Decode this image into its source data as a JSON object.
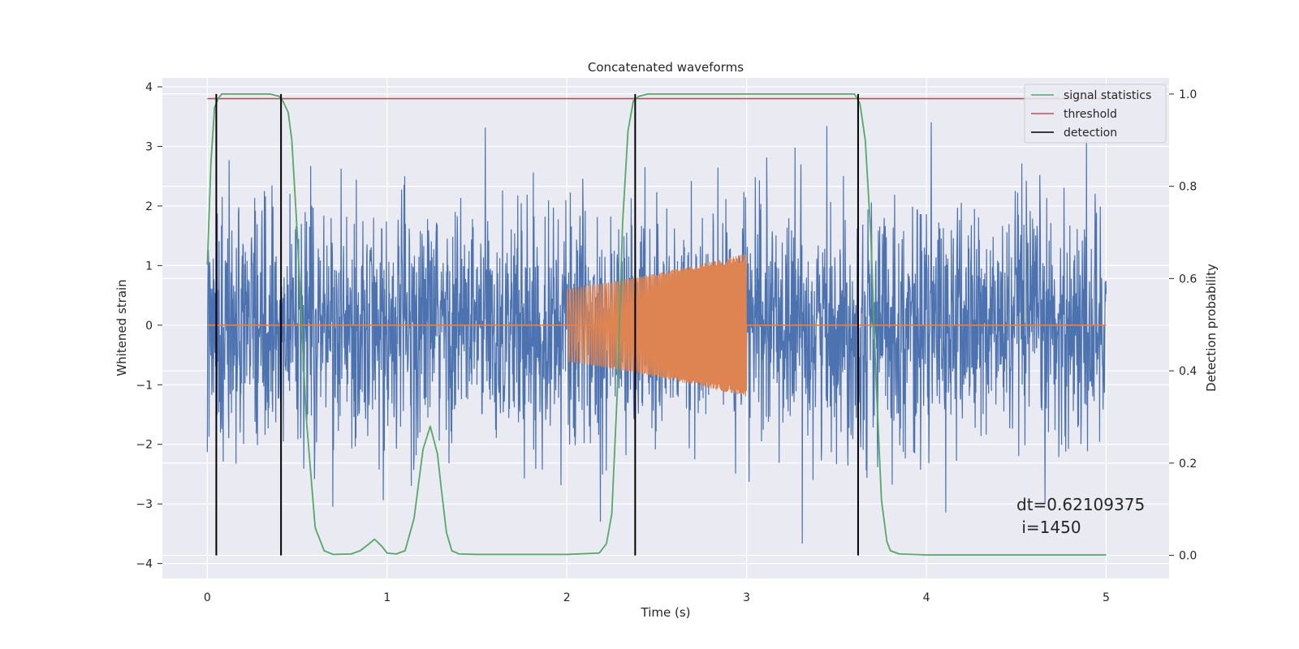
{
  "chart_data": {
    "type": "line",
    "title": "Concatenated waveforms",
    "xlabel": "Time (s)",
    "ylabel": "Whitened strain",
    "ylabel_right": "Detection probability",
    "xlim": [
      -0.25,
      5.35
    ],
    "ylim": [
      -4.25,
      4.15
    ],
    "ylim_right": [
      -0.05,
      1.035
    ],
    "xticks": [
      0,
      1,
      2,
      3,
      4,
      5
    ],
    "yticks": [
      -4,
      -3,
      -2,
      -1,
      0,
      1,
      2,
      3,
      4
    ],
    "yticks_right": [
      0.0,
      0.2,
      0.4,
      0.6,
      0.8,
      1.0
    ],
    "xtick_labels": [
      "0",
      "1",
      "2",
      "3",
      "4",
      "5"
    ],
    "ytick_labels": [
      "−4",
      "−3",
      "−2",
      "−1",
      "0",
      "1",
      "2",
      "3",
      "4"
    ],
    "ytick_right_labels": [
      "0.0",
      "0.2",
      "0.4",
      "0.6",
      "0.8",
      "1.0"
    ],
    "grid": true,
    "legend_position": "top-right",
    "colors": {
      "background": "#eaeaf2",
      "grid": "#ffffff",
      "strain": "#4c72b0",
      "template": "#dd8452",
      "statistics": "#55a868",
      "threshold": "#c44e52",
      "detection": "#000000"
    },
    "series": [
      {
        "name": "",
        "axis": "left",
        "kind": "noise-strain",
        "x_range": [
          0,
          5
        ],
        "envelope": [
          -1.0,
          1.0
        ],
        "max_abs": 3.85
      },
      {
        "name": "",
        "axis": "left",
        "kind": "chirp-template",
        "x_range": [
          2.0,
          3.0
        ],
        "amplitude_start": 0.62,
        "amplitude_end": 1.2,
        "baseline_x_range": [
          0,
          5
        ],
        "baseline_y": 0
      },
      {
        "name": "signal statistics",
        "axis": "right",
        "x": [
          0.0,
          0.02,
          0.04,
          0.06,
          0.08,
          0.1,
          0.2,
          0.35,
          0.4,
          0.42,
          0.45,
          0.47,
          0.5,
          0.55,
          0.6,
          0.65,
          0.7,
          0.8,
          0.85,
          0.9,
          0.93,
          0.97,
          1.0,
          1.05,
          1.1,
          1.15,
          1.2,
          1.24,
          1.28,
          1.3,
          1.33,
          1.36,
          1.4,
          1.5,
          2.0,
          2.18,
          2.22,
          2.25,
          2.28,
          2.31,
          2.34,
          2.37,
          2.4,
          2.45,
          2.5,
          3.0,
          3.5,
          3.6,
          3.63,
          3.66,
          3.69,
          3.72,
          3.75,
          3.78,
          3.8,
          3.85,
          4.0,
          5.0
        ],
        "y": [
          0.63,
          0.85,
          0.97,
          0.99,
          1.0,
          1.0,
          1.0,
          1.0,
          0.995,
          0.985,
          0.96,
          0.9,
          0.7,
          0.3,
          0.06,
          0.01,
          0.002,
          0.003,
          0.01,
          0.025,
          0.035,
          0.02,
          0.005,
          0.003,
          0.01,
          0.08,
          0.23,
          0.28,
          0.22,
          0.15,
          0.05,
          0.01,
          0.003,
          0.002,
          0.002,
          0.005,
          0.025,
          0.09,
          0.35,
          0.72,
          0.92,
          0.985,
          0.995,
          1.0,
          1.0,
          1.0,
          1.0,
          1.0,
          0.98,
          0.9,
          0.7,
          0.38,
          0.12,
          0.03,
          0.01,
          0.003,
          0.001,
          0.001
        ]
      },
      {
        "name": "threshold",
        "axis": "right",
        "x": [
          0,
          5
        ],
        "y": [
          0.99,
          0.99
        ]
      },
      {
        "name": "detection",
        "axis": "right",
        "kind": "vlines",
        "x": [
          0.05,
          0.41,
          2.38,
          3.62
        ],
        "y_range": [
          0.0,
          1.0
        ]
      }
    ],
    "annotation": "dt=0.62109375\n i=1450",
    "annotation_lines": [
      "dt=0.62109375",
      " i=1450"
    ]
  }
}
